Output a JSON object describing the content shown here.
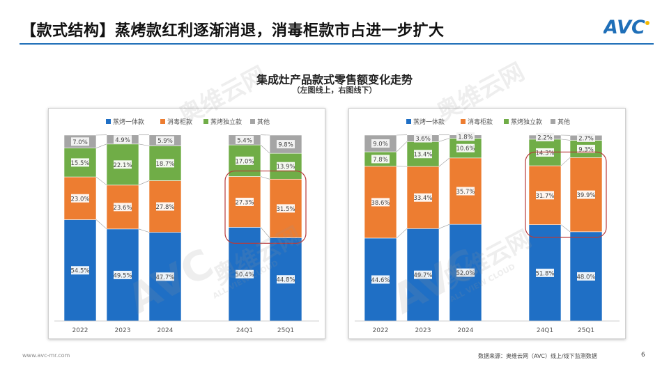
{
  "header": {
    "title": "【款式结构】蒸烤款红利逐渐消退，消毒柜款市占进一步扩大",
    "logo_text": "AVC",
    "brand_color": "#1f6fb8"
  },
  "figure": {
    "title": "集成灶产品款式零售额变化走势",
    "subtitle": "（左图线上，右图线下）"
  },
  "legend": [
    {
      "name": "蒸烤一体款",
      "color": "#1f6fc5"
    },
    {
      "name": "消毒柜款",
      "color": "#ed7d31"
    },
    {
      "name": "蒸烤独立款",
      "color": "#70ad47"
    },
    {
      "name": "其他",
      "color": "#a5a5a5"
    }
  ],
  "chart_data": [
    {
      "type": "bar",
      "stacked": true,
      "percent": true,
      "categories": [
        "2022",
        "2023",
        "2024",
        "24Q1",
        "25Q1"
      ],
      "series": [
        {
          "name": "蒸烤一体款",
          "values": [
            54.5,
            49.5,
            47.7,
            50.4,
            44.8
          ],
          "labels": [
            "54.5%",
            "49.5%",
            "47.7%",
            "50.4%",
            "44.8%"
          ]
        },
        {
          "name": "消毒柜款",
          "values": [
            23.0,
            23.6,
            27.8,
            27.3,
            31.5
          ],
          "labels": [
            "23.0%",
            "23.6%",
            "27.8%",
            "27.3%",
            "31.5%"
          ]
        },
        {
          "name": "蒸烤独立款",
          "values": [
            15.5,
            22.1,
            18.7,
            17.0,
            13.9
          ],
          "labels": [
            "15.5%",
            "22.1%",
            "18.7%",
            "17.0%",
            "13.9%"
          ]
        },
        {
          "name": "其他",
          "values": [
            7.0,
            4.9,
            5.9,
            5.4,
            9.8
          ],
          "labels": [
            "7.0%",
            "4.9%",
            "5.9%",
            "5.4%",
            "9.8%"
          ]
        }
      ],
      "ylim": [
        0,
        100
      ],
      "legend_position": "top",
      "highlight": [
        "24Q1",
        "25Q1"
      ],
      "highlight_series": "消毒柜款"
    },
    {
      "type": "bar",
      "stacked": true,
      "percent": true,
      "categories": [
        "2022",
        "2023",
        "2024",
        "24Q1",
        "25Q1"
      ],
      "series": [
        {
          "name": "蒸烤一体款",
          "values": [
            44.6,
            49.7,
            52.0,
            51.8,
            48.0
          ],
          "labels": [
            "44.6%",
            "49.7%",
            "52.0%",
            "51.8%",
            "48.0%"
          ]
        },
        {
          "name": "消毒柜款",
          "values": [
            38.6,
            33.4,
            35.7,
            31.7,
            39.9
          ],
          "labels": [
            "38.6%",
            "33.4%",
            "35.7%",
            "31.7%",
            "39.9%"
          ]
        },
        {
          "name": "蒸烤独立款",
          "values": [
            7.8,
            13.4,
            10.6,
            14.3,
            9.3
          ],
          "labels": [
            "7.8%",
            "13.4%",
            "10.6%",
            "14.3%",
            "9.3%"
          ]
        },
        {
          "name": "其他",
          "values": [
            9.0,
            3.6,
            1.8,
            2.2,
            2.7
          ],
          "labels": [
            "9.0%",
            "3.6%",
            "1.8%",
            "2.2%",
            "2.7%"
          ]
        }
      ],
      "ylim": [
        0,
        100
      ],
      "legend_position": "top",
      "highlight": [
        "24Q1",
        "25Q1"
      ],
      "highlight_series": "消毒柜款"
    }
  ],
  "footer": {
    "url": "www.avc-mr.com",
    "source": "数据来源：奥维云网（AVC）线上/线下监测数据",
    "page": "6"
  },
  "watermark": {
    "text": "奥维云网",
    "sub": "ALL VIEW CLOUD",
    "logo": "AVC"
  }
}
